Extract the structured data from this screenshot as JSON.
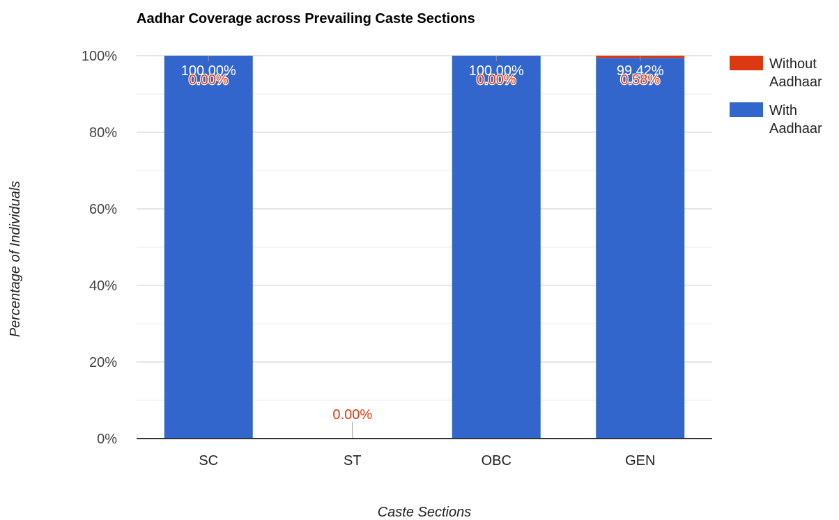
{
  "chart_data": {
    "type": "bar",
    "stacked": true,
    "title": "Aadhar Coverage across Prevailing Caste Sections",
    "xlabel": "Caste Sections",
    "ylabel": "Percentage of Individuals",
    "categories": [
      "SC",
      "ST",
      "OBC",
      "GEN"
    ],
    "ylim": [
      0,
      100
    ],
    "yticks": [
      "0%",
      "20%",
      "40%",
      "60%",
      "80%",
      "100%"
    ],
    "grid": true,
    "legend_position": "right",
    "series": [
      {
        "name": "With Aadhaar",
        "color": "#3366cc",
        "values": [
          100,
          0,
          100,
          99.42
        ],
        "labels": [
          "100.00%",
          "",
          "100.00%",
          "99.42%"
        ]
      },
      {
        "name": "Without Aadhaar",
        "color": "#dc3912",
        "values": [
          0,
          0,
          0,
          0.58
        ],
        "labels": [
          "0.00%",
          "0.00%",
          "0.00%",
          "0.58%"
        ]
      }
    ],
    "legend": [
      {
        "line1": "Without",
        "line2": "Aadhaar",
        "color": "#dc3912"
      },
      {
        "line1": "With",
        "line2": "Aadhaar",
        "color": "#3366cc"
      }
    ]
  }
}
